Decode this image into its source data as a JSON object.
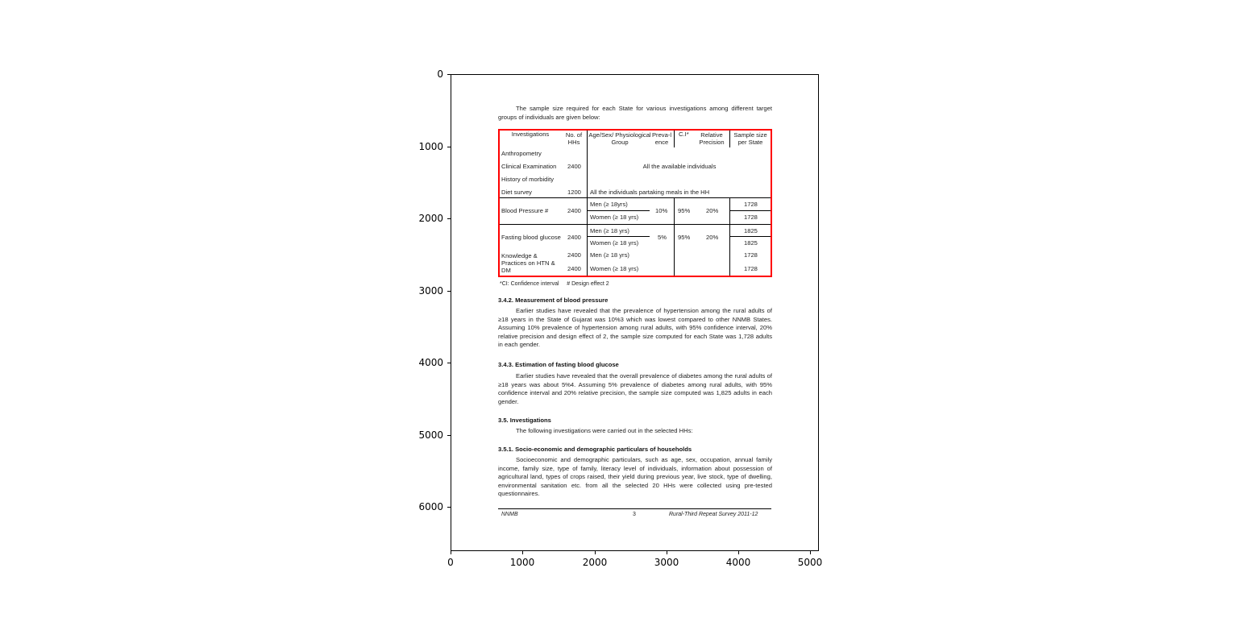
{
  "axes": {
    "x_ticks": [
      "0",
      "1000",
      "2000",
      "3000",
      "4000",
      "5000"
    ],
    "y_ticks": [
      "0",
      "1000",
      "2000",
      "3000",
      "4000",
      "5000",
      "6000"
    ],
    "highlight_color": "#ff0000"
  },
  "doc": {
    "intro": "The sample size required for each State for various investigations among different target groups of individuals are given below:",
    "table": {
      "headers": [
        "Investigations",
        "No. of HHs",
        "Age/Sex/ Physiological Group",
        "Preva-lence",
        "C.I*",
        "Relative Precision",
        "Sample size per State"
      ],
      "rows": [
        {
          "inv": "Anthropometry"
        },
        {
          "inv": "Clinical Examination",
          "hhs": "2400",
          "span": "All the available individuals"
        },
        {
          "inv": "History of morbidity"
        },
        {
          "inv": "Diet survey",
          "hhs": "1200",
          "span": "All the individuals partaking meals in the HH"
        },
        {
          "inv": "Blood Pressure #",
          "hhs": "2400",
          "groups": [
            "Men (≥ 18yrs)",
            "Women (≥ 18 yrs)"
          ],
          "prev": "10%",
          "ci": "95%",
          "rp": "20%",
          "sizes": [
            "1728",
            "1728"
          ]
        },
        {
          "inv": "Fasting blood glucose",
          "hhs": "2400",
          "groups": [
            "Men (≥ 18 yrs)",
            "Women (≥ 18 yrs)"
          ],
          "prev": "5%",
          "ci": "95%",
          "rp": "20%",
          "sizes": [
            "1825",
            "1825"
          ]
        },
        {
          "inv": "Knowledge & Practices on HTN & DM",
          "hhs": [
            "2400",
            "2400"
          ],
          "groups": [
            "Men (≥ 18 yrs)",
            "Women (≥ 18 yrs)"
          ],
          "sizes": [
            "1728",
            "1728"
          ]
        }
      ]
    },
    "footnote": "*CI: Confidence interval     # Design effect 2",
    "h342": "3.4.2. Measurement of blood pressure",
    "p342": "Earlier studies have revealed that the prevalence of hypertension among the rural adults of ≥18 years in the State of Gujarat was 10%3 which was lowest compared to other NNMB States. Assuming 10% prevalence of hypertension among rural adults, with 95% confidence interval, 20% relative precision and design effect of 2, the sample size computed for each State was 1,728 adults in each gender.",
    "h343": "3.4.3. Estimation of fasting blood glucose",
    "p343": "Earlier studies have revealed that the overall prevalence of diabetes among the rural adults of ≥18 years was about 5%4. Assuming 5% prevalence of diabetes among rural adults, with 95% confidence interval and 20% relative precision, the sample size computed was 1,825 adults in each gender.",
    "h35": "3.5. Investigations",
    "p35": "The following investigations were carried out in the selected HHs:",
    "h351": "3.5.1. Socio-economic and demographic particulars of households",
    "p351": "Socioeconomic and demographic particulars, such as age, sex, occupation, annual family income, family size, type of family, literacy level of individuals, information about possession of agricultural land, types of crops raised, their yield during previous year, live stock, type of dwelling, environmental sanitation etc. from all the selected 20 HHs were collected using pre-tested questionnaires.",
    "footer": {
      "left": "NNMB",
      "center": "3",
      "right": "Rural-Third Repeat Survey 2011-12"
    }
  }
}
